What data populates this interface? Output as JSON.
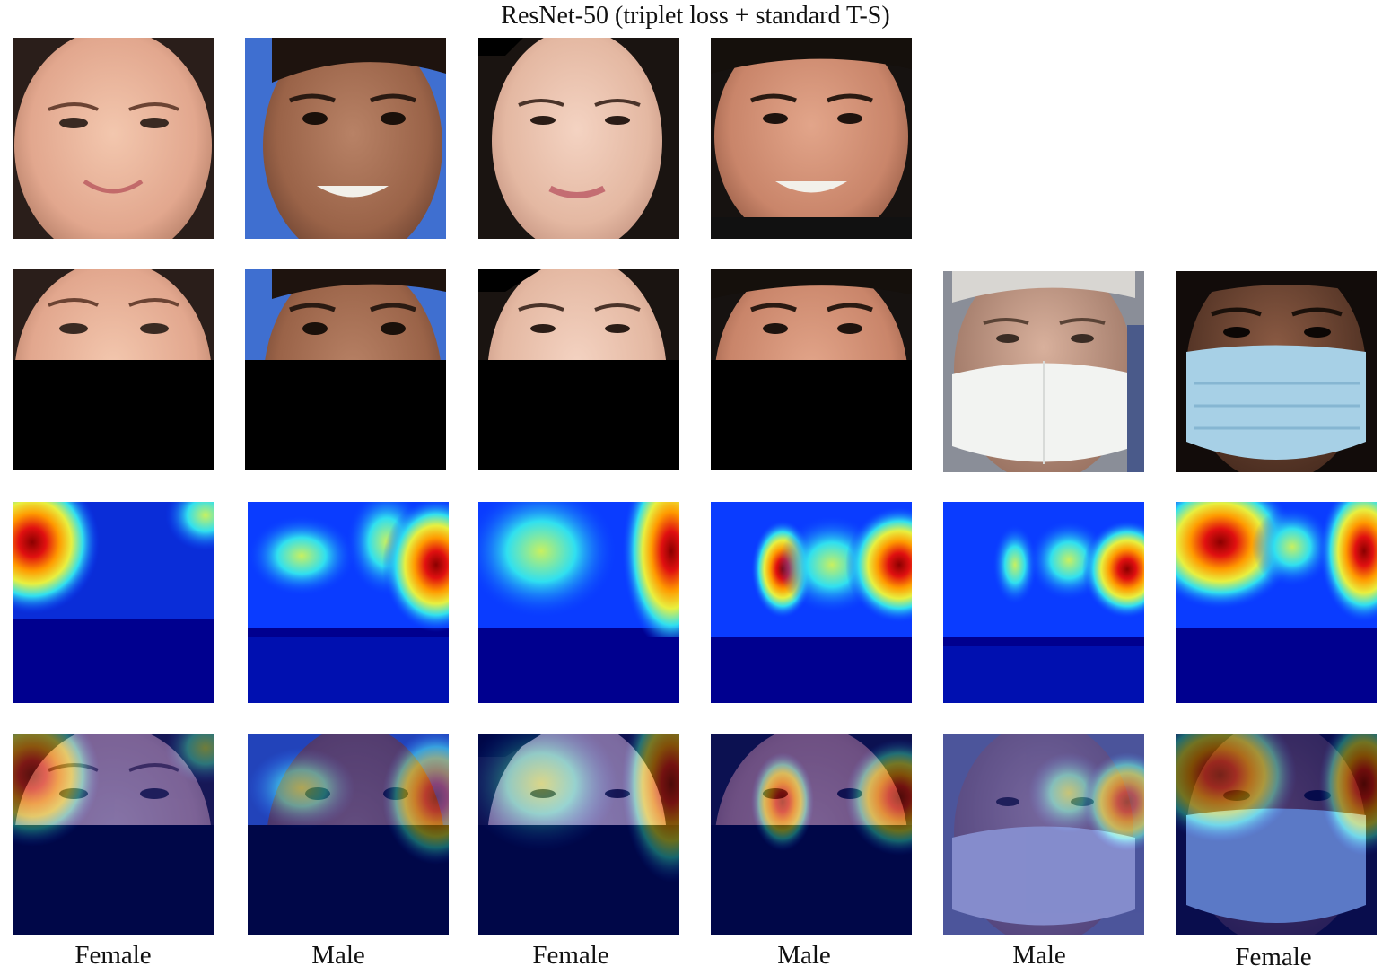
{
  "figure": {
    "title": "ResNet-50 (triplet loss + standard T-S)"
  },
  "columns": [
    {
      "label": "Female"
    },
    {
      "label": "Male"
    },
    {
      "label": "Female"
    },
    {
      "label": "Male"
    },
    {
      "label": "Male"
    },
    {
      "label": "Female"
    }
  ]
}
